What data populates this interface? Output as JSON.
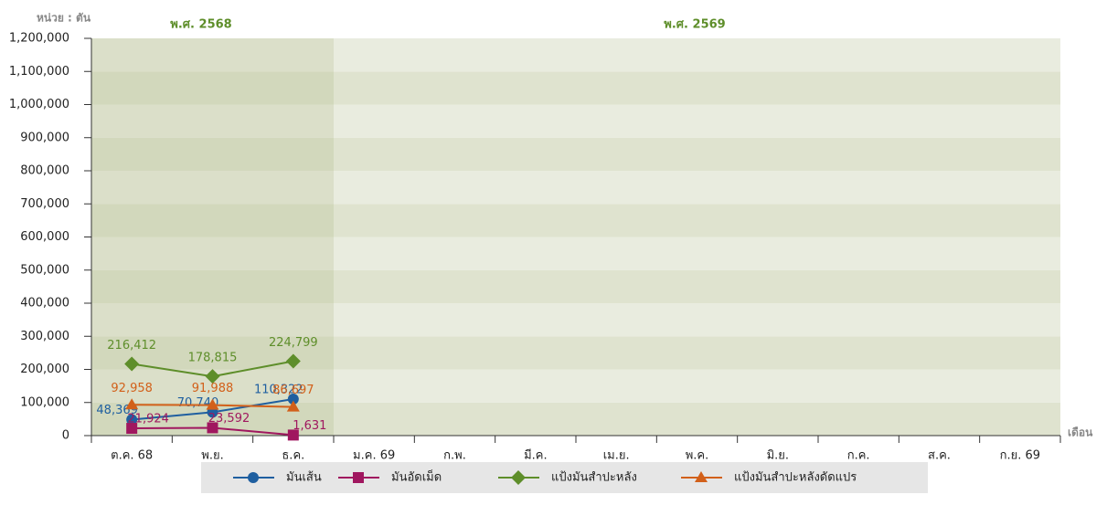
{
  "chart_data": {
    "type": "line",
    "y_unit_label": "หน่วย : ตัน",
    "x_unit_label": "เดือน",
    "period_labels": [
      "พ.ศ. 2568",
      "พ.ศ. 2569"
    ],
    "categories": [
      "ต.ค. 68",
      "พ.ย.",
      "ธ.ค.",
      "ม.ค. 69",
      "ก.พ.",
      "มี.ค.",
      "เม.ย.",
      "พ.ค.",
      "มิ.ย.",
      "ก.ค.",
      "ส.ค.",
      "ก.ย. 69"
    ],
    "series": [
      {
        "name": "มันเส้น",
        "color": "#1f5fa0",
        "marker": "circle",
        "values": [
          48369,
          70740,
          110322,
          null,
          null,
          null,
          null,
          null,
          null,
          null,
          null,
          null
        ],
        "value_labels": [
          "48,369",
          "70,740",
          "110,322",
          null,
          null,
          null,
          null,
          null,
          null,
          null,
          null,
          null
        ]
      },
      {
        "name": "มันอัดเม็ด",
        "color": "#a0175f",
        "marker": "square",
        "values": [
          21924,
          23592,
          1631,
          null,
          null,
          null,
          null,
          null,
          null,
          null,
          null,
          null
        ],
        "value_labels": [
          "21,924",
          "23,592",
          "1,631",
          null,
          null,
          null,
          null,
          null,
          null,
          null,
          null,
          null
        ]
      },
      {
        "name": "แป้งมันสำปะหลัง",
        "color": "#5e8e2a",
        "marker": "diamond",
        "values": [
          216412,
          178815,
          224799,
          null,
          null,
          null,
          null,
          null,
          null,
          null,
          null,
          null
        ],
        "value_labels": [
          "216,412",
          "178,815",
          "224,799",
          null,
          null,
          null,
          null,
          null,
          null,
          null,
          null,
          null
        ]
      },
      {
        "name": "แป้งมันสำปะหลังดัดแปร",
        "color": "#d2601a",
        "marker": "triangle",
        "values": [
          92958,
          91988,
          86697,
          null,
          null,
          null,
          null,
          null,
          null,
          null,
          null,
          null
        ],
        "value_labels": [
          "92,958",
          "91,988",
          "86,697",
          null,
          null,
          null,
          null,
          null,
          null,
          null,
          null,
          null
        ]
      }
    ],
    "ylim": [
      0,
      1200000
    ],
    "yticks": [
      0,
      {
        "value": 100000,
        "label": "100,000"
      },
      {
        "value": 200000,
        "label": "200,000"
      },
      {
        "value": 300000,
        "label": "300,000"
      },
      {
        "value": 400000,
        "label": "400,000"
      },
      {
        "value": 500000,
        "label": "500,000"
      },
      {
        "value": 600000,
        "label": "600,000"
      },
      {
        "value": 700000,
        "label": "700,000"
      },
      {
        "value": 800000,
        "label": "800,000"
      },
      {
        "value": 900000,
        "label": "900,000"
      },
      {
        "value": 1000000,
        "label": "1,000,000"
      },
      {
        "value": 1100000,
        "label": "1,100,000"
      },
      {
        "value": 1200000,
        "label": "1,200,000"
      }
    ],
    "legend": "bottom"
  }
}
